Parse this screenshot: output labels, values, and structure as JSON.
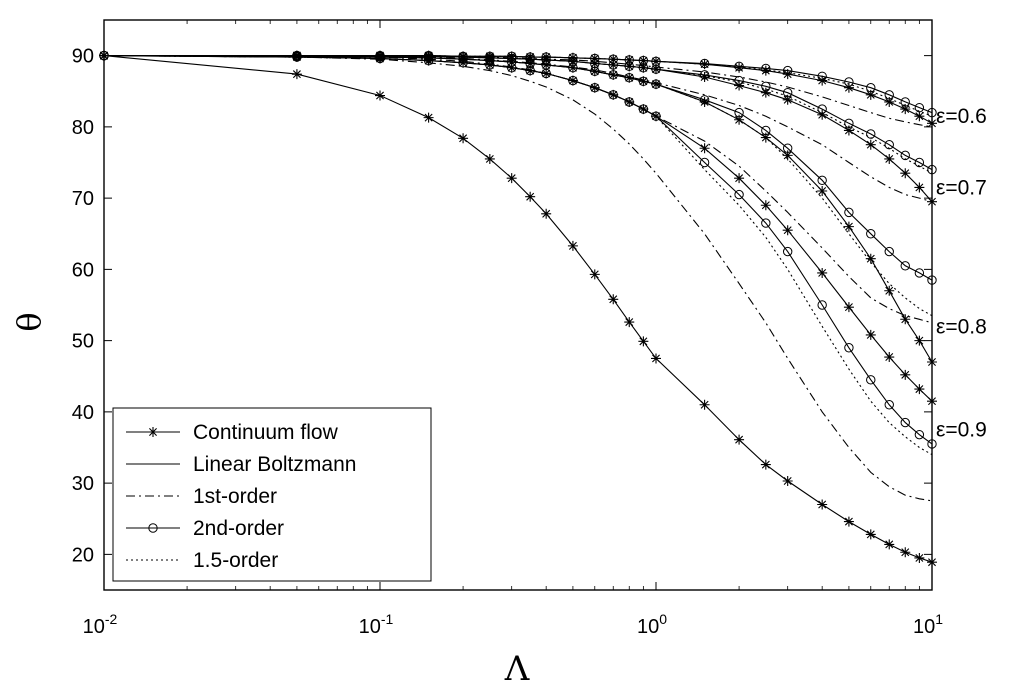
{
  "chart_data": {
    "type": "line",
    "x_scale": "log",
    "xlim": [
      0.01,
      10
    ],
    "ylim": [
      15,
      95
    ],
    "xlabel": "Λ",
    "ylabel": "θ",
    "x_ticks": [
      {
        "base": "10",
        "exp": "-2",
        "value": 0.01
      },
      {
        "base": "10",
        "exp": "-1",
        "value": 0.1
      },
      {
        "base": "10",
        "exp": "0",
        "value": 1
      },
      {
        "base": "10",
        "exp": "1",
        "value": 10
      }
    ],
    "y_ticks": [
      "20",
      "30",
      "40",
      "50",
      "60",
      "70",
      "80",
      "90"
    ],
    "grid": false,
    "legend_position": "bottom-left",
    "legend": [
      {
        "label": "Continuum flow",
        "style": "solid",
        "marker": "star"
      },
      {
        "label": "Linear Boltzmann",
        "style": "solid",
        "marker": "none"
      },
      {
        "label": "1st-order",
        "style": "dashdot",
        "marker": "none"
      },
      {
        "label": "2nd-order",
        "style": "solid",
        "marker": "circle"
      },
      {
        "label": "1.5-order",
        "style": "dotted",
        "marker": "none"
      }
    ],
    "annotations": [
      "ε=0.6",
      "ε=0.7",
      "ε=0.8",
      "ε=0.9"
    ],
    "x": [
      0.01,
      0.05,
      0.1,
      0.15,
      0.2,
      0.25,
      0.3,
      0.35,
      0.4,
      0.5,
      0.6,
      0.7,
      0.8,
      0.9,
      1,
      1.5,
      2,
      2.5,
      3,
      4,
      5,
      6,
      7,
      8,
      9,
      10
    ],
    "series": [
      {
        "legend_index": 0,
        "style": "solid",
        "marker": "star",
        "values": [
          90,
          87.4,
          84.4,
          81.3,
          78.4,
          75.5,
          72.8,
          70.2,
          67.8,
          63.3,
          59.3,
          55.8,
          52.6,
          49.9,
          47.5,
          41,
          36.1,
          32.6,
          30.3,
          27,
          24.6,
          22.8,
          21.4,
          20.3,
          19.5,
          18.9
        ]
      },
      {
        "style": "solid",
        "marker": "star",
        "values": [
          90,
          89.8,
          89.6,
          89.3,
          89,
          88.7,
          88.3,
          87.9,
          87.5,
          86.5,
          85.5,
          84.5,
          83.5,
          82.5,
          81.5,
          77,
          72.8,
          69,
          65.5,
          59.5,
          54.7,
          50.8,
          47.7,
          45.2,
          43.2,
          41.5
        ]
      },
      {
        "style": "solid",
        "marker": "circle",
        "values": [
          90,
          89.8,
          89.6,
          89.3,
          89,
          88.7,
          88.3,
          87.9,
          87.5,
          86.5,
          85.5,
          84.5,
          83.5,
          82.5,
          81.5,
          75,
          70.5,
          66.5,
          62.5,
          55,
          49,
          44.5,
          41,
          38.5,
          36.8,
          35.5
        ]
      },
      {
        "style": "dashdot",
        "marker": "none",
        "values": [
          90,
          89.8,
          89.5,
          89,
          88.5,
          87.9,
          87.2,
          86.4,
          85.6,
          83.8,
          81.8,
          79.7,
          77.6,
          75.5,
          73.5,
          65,
          58,
          52.5,
          47.5,
          40,
          35,
          31.5,
          29.5,
          28.3,
          27.8,
          27.5
        ]
      },
      {
        "style": "dotted",
        "marker": "none",
        "values": [
          90,
          89.8,
          89.6,
          89.3,
          89,
          88.7,
          88.3,
          87.9,
          87.5,
          86.5,
          85.5,
          84.5,
          83.5,
          82.5,
          81.5,
          74,
          69,
          64.5,
          60,
          52,
          46,
          41.5,
          38.5,
          36.5,
          35,
          34
        ]
      },
      {
        "style": "solid",
        "marker": "star",
        "values": [
          90,
          89.9,
          89.8,
          89.7,
          89.5,
          89.3,
          89.1,
          88.9,
          88.7,
          88.3,
          87.8,
          87.3,
          86.9,
          86.4,
          86,
          83.5,
          81,
          78.5,
          76,
          71,
          66,
          61.5,
          57,
          53,
          50,
          47
        ]
      },
      {
        "style": "solid",
        "marker": "circle",
        "values": [
          90,
          89.9,
          89.8,
          89.7,
          89.5,
          89.3,
          89.1,
          88.9,
          88.7,
          88.3,
          87.8,
          87.3,
          86.9,
          86.4,
          86,
          83.8,
          82,
          79.5,
          77,
          72.5,
          68,
          65,
          62.5,
          60.5,
          59.5,
          58.5
        ]
      },
      {
        "style": "dashdot",
        "marker": "none",
        "values": [
          90,
          89.9,
          89.8,
          89.5,
          89.2,
          88.8,
          88.4,
          88,
          87.5,
          86.5,
          85.5,
          84.5,
          83.5,
          82.5,
          81.5,
          78,
          74.5,
          71,
          68,
          63,
          59,
          56,
          54.5,
          53.5,
          53,
          52.5
        ]
      },
      {
        "style": "dotted",
        "marker": "none",
        "values": [
          90,
          89.9,
          89.8,
          89.7,
          89.5,
          89.3,
          89.1,
          88.9,
          88.7,
          88.3,
          87.8,
          87.3,
          86.9,
          86.4,
          86,
          83.5,
          81,
          78.5,
          75.5,
          70,
          65,
          61,
          58,
          56,
          54.5,
          53.5
        ]
      },
      {
        "style": "solid",
        "marker": "star",
        "values": [
          90,
          90,
          89.9,
          89.9,
          89.8,
          89.7,
          89.6,
          89.5,
          89.4,
          89.2,
          88.9,
          88.7,
          88.5,
          88.3,
          88.1,
          87,
          85.8,
          84.8,
          83.8,
          81.7,
          79.5,
          77.5,
          75.5,
          73.5,
          71.5,
          69.5
        ]
      },
      {
        "style": "solid",
        "marker": "circle",
        "values": [
          90,
          90,
          89.9,
          89.9,
          89.8,
          89.7,
          89.6,
          89.5,
          89.4,
          89.2,
          88.9,
          88.7,
          88.5,
          88.3,
          88.1,
          87.3,
          86.5,
          85.7,
          84.8,
          82.5,
          80.5,
          79,
          77.5,
          76,
          75,
          74
        ]
      },
      {
        "style": "dashdot",
        "marker": "none",
        "values": [
          90,
          90,
          89.9,
          89.8,
          89.6,
          89.4,
          89.2,
          89,
          88.8,
          88.4,
          88,
          87.5,
          87,
          86.6,
          86.2,
          84.5,
          83,
          81.5,
          80,
          77.5,
          75,
          73,
          71.5,
          70.5,
          70,
          69.5
        ]
      },
      {
        "style": "dotted",
        "marker": "none",
        "values": [
          90,
          90,
          89.9,
          89.9,
          89.8,
          89.7,
          89.6,
          89.5,
          89.4,
          89.2,
          88.9,
          88.7,
          88.5,
          88.3,
          88.1,
          87.2,
          86.3,
          85.3,
          84.3,
          82,
          80,
          78.5,
          77,
          75.5,
          74.5,
          73.5
        ]
      },
      {
        "style": "solid",
        "marker": "star",
        "values": [
          90,
          90,
          90,
          90,
          89.9,
          89.9,
          89.9,
          89.8,
          89.8,
          89.7,
          89.6,
          89.5,
          89.4,
          89.3,
          89.2,
          88.8,
          88.3,
          87.9,
          87.4,
          86.5,
          85.5,
          84.5,
          83.5,
          82.5,
          81.5,
          80.5
        ]
      },
      {
        "style": "solid",
        "marker": "circle",
        "values": [
          90,
          90,
          90,
          90,
          89.9,
          89.9,
          89.9,
          89.8,
          89.8,
          89.7,
          89.6,
          89.5,
          89.4,
          89.3,
          89.2,
          88.9,
          88.5,
          88.2,
          87.9,
          87.1,
          86.3,
          85.5,
          84.5,
          83.5,
          82.7,
          82
        ]
      },
      {
        "style": "dashdot",
        "marker": "none",
        "values": [
          90,
          90,
          90,
          89.9,
          89.9,
          89.8,
          89.7,
          89.6,
          89.5,
          89.4,
          89.2,
          89,
          88.8,
          88.6,
          88.4,
          87.7,
          87,
          86.3,
          85.6,
          84.2,
          83,
          82,
          81.2,
          80.7,
          80.3,
          80
        ]
      },
      {
        "style": "dotted",
        "marker": "none",
        "values": [
          90,
          90,
          90,
          90,
          89.9,
          89.9,
          89.9,
          89.8,
          89.8,
          89.7,
          89.6,
          89.5,
          89.4,
          89.3,
          89.2,
          88.8,
          88.4,
          88,
          87.6,
          86.8,
          86,
          85,
          84,
          83,
          82.2,
          81.5
        ]
      }
    ]
  }
}
